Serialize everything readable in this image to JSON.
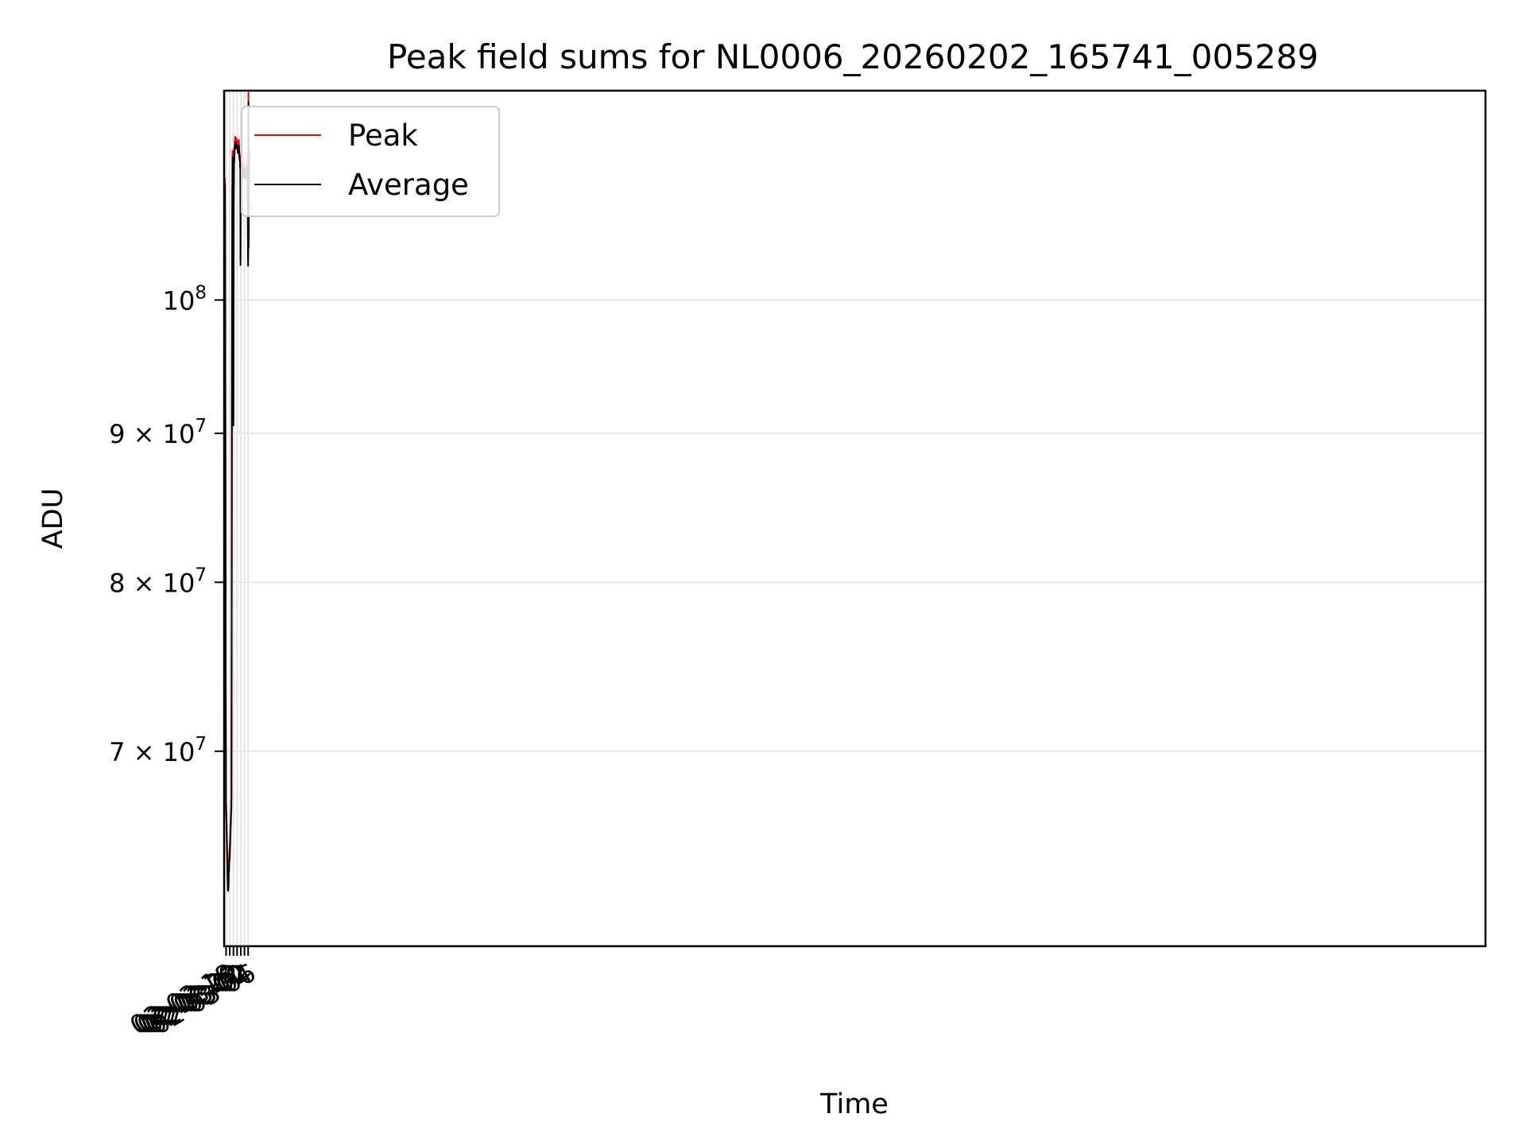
{
  "chart_data": {
    "type": "line",
    "title": "Peak field sums for NL0006_20260202_165741_005289",
    "xlabel": "Time",
    "ylabel": "ADU",
    "y_scale": "log",
    "xlim": [
      "2026-02-02 16:57",
      "2026-03-03 06:34"
    ],
    "ylim": [
      60000000,
      118000000
    ],
    "grid": true,
    "legend_position": "top-left",
    "x_ticks": [
      {
        "t": "2026-02-02 18:00",
        "label": "02-02 18"
      },
      {
        "t": "2026-02-02 20:00",
        "label": "02-02 20"
      },
      {
        "t": "2026-02-02 22:00",
        "label": "02-02 22"
      },
      {
        "t": "2026-02-03 00:00",
        "label": "02-03 00"
      },
      {
        "t": "2026-02-03 02:00",
        "label": "02-03 02"
      },
      {
        "t": "2026-02-03 04:00",
        "label": "02-03 04"
      },
      {
        "t": "2026-02-03 06:00",
        "label": "02-03 06"
      }
    ],
    "y_ticks": [
      {
        "v": 70000000,
        "mantissa": "7",
        "exp": "7"
      },
      {
        "v": 80000000,
        "mantissa": "8",
        "exp": "7"
      },
      {
        "v": 90000000,
        "mantissa": "9",
        "exp": "7"
      },
      {
        "v": 100000000,
        "mantissa": "",
        "exp": "8"
      }
    ],
    "series": [
      {
        "name": "Peak",
        "color": "#ff0000",
        "x": [
          "2026-02-02 16:57",
          "2026-02-02 17:05",
          "2026-02-02 17:15",
          "2026-02-02 17:17",
          "2026-02-02 17:20",
          "2026-02-02 17:25",
          "2026-02-02 17:30",
          "2026-02-02 17:35",
          "2026-02-02 17:40",
          "2026-02-02 17:45",
          "2026-02-02 17:50",
          "2026-02-02 18:00",
          "2026-02-02 18:15",
          "2026-02-02 18:30",
          "2026-02-02 18:45",
          "2026-02-02 19:00",
          "2026-02-02 19:15",
          "2026-02-02 19:30",
          "2026-02-02 19:45",
          "2026-02-02 20:00",
          "2026-02-02 20:15",
          "2026-02-02 20:30",
          "2026-02-02 20:45",
          "2026-02-02 20:55",
          "2026-02-02 21:05",
          "2026-02-02 21:10",
          "2026-02-02 21:15",
          "2026-02-02 21:20",
          "2026-02-02 21:25",
          "2026-02-02 21:30",
          "2026-02-02 21:35",
          "2026-02-02 21:40",
          "2026-02-02 21:45",
          "2026-02-02 21:50",
          "2026-02-02 21:55",
          "2026-02-02 22:00",
          "2026-02-02 22:05",
          "2026-02-02 22:10",
          "2026-02-02 22:15",
          "2026-02-02 22:20",
          "2026-02-02 22:25",
          "2026-02-02 22:30",
          "2026-02-02 22:45",
          "2026-02-02 23:00",
          "2026-02-02 23:15",
          "2026-02-02 23:30",
          "2026-02-02 23:45",
          "2026-02-03 00:00",
          "2026-02-03 00:15",
          "2026-02-03 00:30",
          "2026-02-03 00:45",
          "2026-02-03 01:00",
          "2026-02-03 01:15",
          "2026-02-03 01:30",
          "2026-02-03 01:45",
          "2026-02-03 01:50",
          "2026-02-03 01:55",
          "2026-02-03 02:00",
          "2026-02-03 02:15",
          "2026-02-03 02:30",
          "2026-02-03 02:45",
          "2026-02-03 03:00",
          "2026-02-03 03:15",
          "2026-02-03 03:30",
          "2026-02-03 03:45",
          "2026-02-03 04:00",
          "2026-02-03 04:15",
          "2026-02-03 04:30",
          "2026-02-03 04:45",
          "2026-02-03 05:00",
          "2026-02-03 05:15",
          "2026-02-03 05:30",
          "2026-02-03 05:40",
          "2026-02-03 05:50",
          "2026-02-03 05:55",
          "2026-02-03 06:00",
          "2026-02-03 06:05",
          "2026-02-03 06:10",
          "2026-02-03 06:15",
          "2026-02-03 06:20",
          "2026-02-03 06:25",
          "2026-02-03 06:30",
          "2026-02-03 06:34"
        ],
        "values": [
          106500000,
          102000000,
          96500000,
          91500000,
          109000000,
          110200000,
          101000000,
          95000000,
          86000000,
          80500000,
          74500000,
          67500000,
          66500000,
          65300000,
          64000000,
          63200000,
          63300000,
          64100000,
          64600000,
          64900000,
          65500000,
          66300000,
          67100000,
          67500000,
          82000000,
          93000000,
          103500000,
          104500000,
          110000000,
          112200000,
          111600000,
          111000000,
          109000000,
          107800000,
          100000000,
          91200000,
          100000000,
          108500000,
          110400000,
          112500000,
          112200000,
          112400000,
          113000000,
          113700000,
          113500000,
          113300000,
          113300000,
          113400000,
          113100000,
          113200000,
          113000000,
          113300000,
          112300000,
          112000000,
          111800000,
          103500000,
          109000000,
          111200000,
          111700000,
          111200000,
          110700000,
          110500000,
          110900000,
          111300000,
          111000000,
          110900000,
          110800000,
          110700000,
          110800000,
          110700000,
          111100000,
          111300000,
          110200000,
          107500000,
          104000000,
          103000000,
          112500000,
          118000000,
          104500000,
          108500000,
          109500000,
          111000000,
          113000000
        ]
      },
      {
        "name": "Average",
        "color": "#000000",
        "x": [
          "2026-02-02 16:57",
          "2026-02-02 17:05",
          "2026-02-02 17:15",
          "2026-02-02 17:17",
          "2026-02-02 17:20",
          "2026-02-02 17:25",
          "2026-02-02 17:30",
          "2026-02-02 17:35",
          "2026-02-02 17:40",
          "2026-02-02 17:45",
          "2026-02-02 17:50",
          "2026-02-02 18:00",
          "2026-02-02 18:15",
          "2026-02-02 18:30",
          "2026-02-02 18:45",
          "2026-02-02 19:00",
          "2026-02-02 19:15",
          "2026-02-02 19:30",
          "2026-02-02 19:45",
          "2026-02-02 20:00",
          "2026-02-02 20:15",
          "2026-02-02 20:30",
          "2026-02-02 20:45",
          "2026-02-02 20:55",
          "2026-02-02 21:05",
          "2026-02-02 21:10",
          "2026-02-02 21:15",
          "2026-02-02 21:20",
          "2026-02-02 21:25",
          "2026-02-02 21:30",
          "2026-02-02 21:35",
          "2026-02-02 21:40",
          "2026-02-02 21:45",
          "2026-02-02 21:50",
          "2026-02-02 21:55",
          "2026-02-02 22:00",
          "2026-02-02 22:05",
          "2026-02-02 22:10",
          "2026-02-02 22:15",
          "2026-02-02 22:20",
          "2026-02-02 22:25",
          "2026-02-02 22:30",
          "2026-02-02 22:45",
          "2026-02-02 23:00",
          "2026-02-02 23:15",
          "2026-02-02 23:30",
          "2026-02-02 23:45",
          "2026-02-03 00:00",
          "2026-02-03 00:15",
          "2026-02-03 00:30",
          "2026-02-03 00:45",
          "2026-02-03 01:00",
          "2026-02-03 01:15",
          "2026-02-03 01:30",
          "2026-02-03 01:45",
          "2026-02-03 01:50",
          "2026-02-03 01:55",
          "2026-02-03 02:00",
          "2026-02-03 02:15",
          "2026-02-03 02:30",
          "2026-02-03 02:45",
          "2026-02-03 03:00",
          "2026-02-03 03:15",
          "2026-02-03 03:30",
          "2026-02-03 03:45",
          "2026-02-03 04:00",
          "2026-02-03 04:15",
          "2026-02-03 04:30",
          "2026-02-03 04:45",
          "2026-02-03 05:00",
          "2026-02-03 05:15",
          "2026-02-03 05:30",
          "2026-02-03 05:40",
          "2026-02-03 05:50",
          "2026-02-03 05:55",
          "2026-02-03 06:00",
          "2026-02-03 06:05",
          "2026-02-03 06:10",
          "2026-02-03 06:15",
          "2026-02-03 06:20",
          "2026-02-03 06:25",
          "2026-02-03 06:30",
          "2026-02-03 06:34"
        ],
        "values": [
          106000000,
          101500000,
          96000000,
          90800000,
          108000000,
          109600000,
          100500000,
          94500000,
          85500000,
          80000000,
          74000000,
          67000000,
          66000000,
          64700000,
          63500000,
          62800000,
          62700000,
          63500000,
          64100000,
          64400000,
          65000000,
          65800000,
          66600000,
          67000000,
          81500000,
          92500000,
          103000000,
          104000000,
          109500000,
          111600000,
          111000000,
          110500000,
          108500000,
          107200000,
          99500000,
          90500000,
          99500000,
          108000000,
          109800000,
          112000000,
          111700000,
          111800000,
          112500000,
          113200000,
          113000000,
          112800000,
          112700000,
          112900000,
          112600000,
          112700000,
          112500000,
          112800000,
          111800000,
          111400000,
          111300000,
          103000000,
          108500000,
          110700000,
          111200000,
          110700000,
          110200000,
          110000000,
          110400000,
          110800000,
          110500000,
          110400000,
          110300000,
          110200000,
          110300000,
          110200000,
          110600000,
          110800000,
          109700000,
          107000000,
          103500000,
          102500000,
          112000000,
          117000000,
          104000000,
          108000000,
          109000000,
          110500000,
          112500000
        ]
      }
    ]
  }
}
